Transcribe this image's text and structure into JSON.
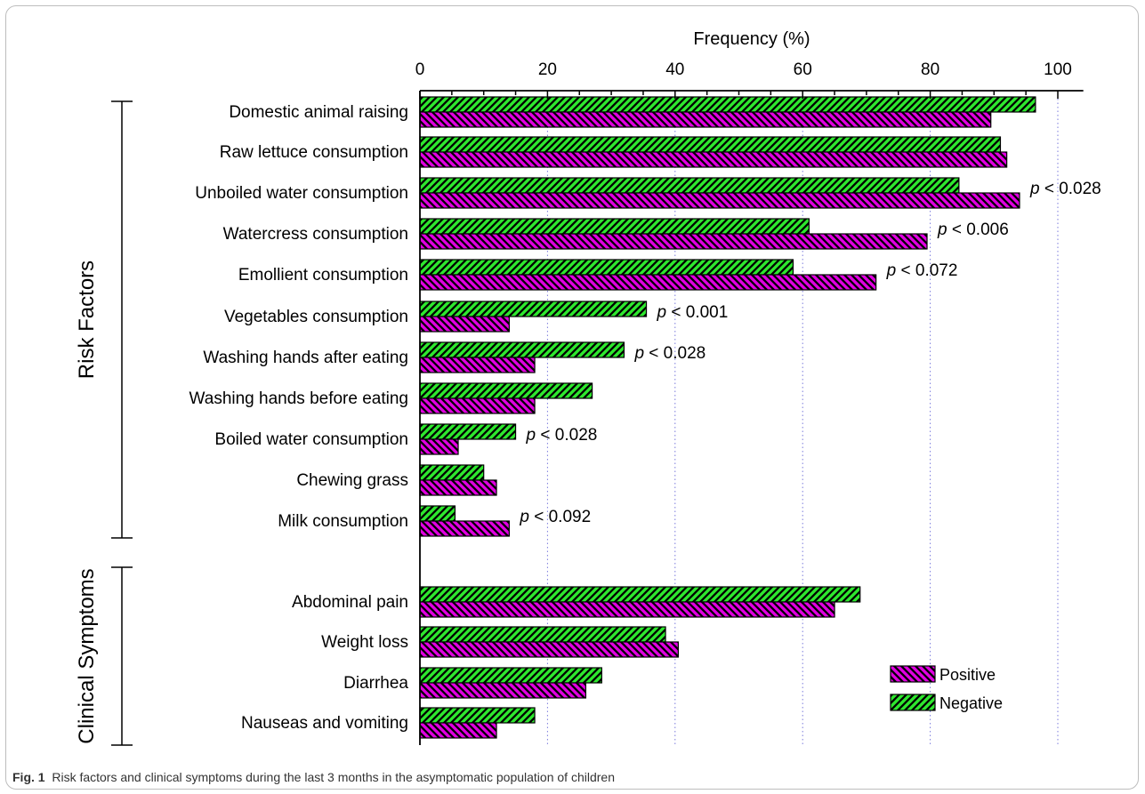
{
  "chart_data": {
    "type": "bar",
    "orientation": "horizontal",
    "xlabel": "Frequency (%)",
    "xlim": [
      0,
      104
    ],
    "xticks": [
      0,
      20,
      40,
      60,
      80,
      100
    ],
    "grid": "vertical dotted at major ticks",
    "groups": [
      {
        "label": "Risk Factors",
        "categories": [
          "Domestic animal raising",
          "Raw lettuce consumption",
          "Unboiled water consumption",
          "Watercress consumption",
          "Emollient consumption",
          "Vegetables consumption",
          "Washing hands after eating",
          "Washing hands before eating",
          "Boiled water consumption",
          "Chewing grass",
          "Milk consumption"
        ],
        "negative": [
          96.5,
          91,
          84.5,
          61,
          58.5,
          35.5,
          32,
          27,
          15,
          10,
          5.5
        ],
        "positive": [
          89.5,
          92,
          94,
          79.5,
          71.5,
          14,
          18,
          18,
          6,
          12,
          14
        ],
        "p_values": [
          "",
          "",
          "< 0.028",
          "< 0.006",
          "< 0.072",
          "< 0.001",
          "< 0.028",
          "",
          "< 0.028",
          "",
          "< 0.092"
        ]
      },
      {
        "label": "Clinical Symptoms",
        "categories": [
          "Abdominal pain",
          "Weight loss",
          "Diarrhea",
          "Nauseas and vomiting"
        ],
        "negative": [
          69,
          38.5,
          28.5,
          18
        ],
        "positive": [
          65,
          40.5,
          26,
          12
        ],
        "p_values": [
          "",
          "",
          "",
          ""
        ]
      }
    ],
    "series": [
      {
        "name": "Positive",
        "color": "#e100e1",
        "pattern": "backslash-hatch"
      },
      {
        "name": "Negative",
        "color": "#2ee82e",
        "pattern": "slash-hatch"
      }
    ],
    "legend": "bottom-right",
    "p_symbol": "p"
  },
  "caption": {
    "label": "Fig. 1",
    "text": "Risk factors and clinical symptoms during the last 3 months in the asymptomatic population of children"
  }
}
